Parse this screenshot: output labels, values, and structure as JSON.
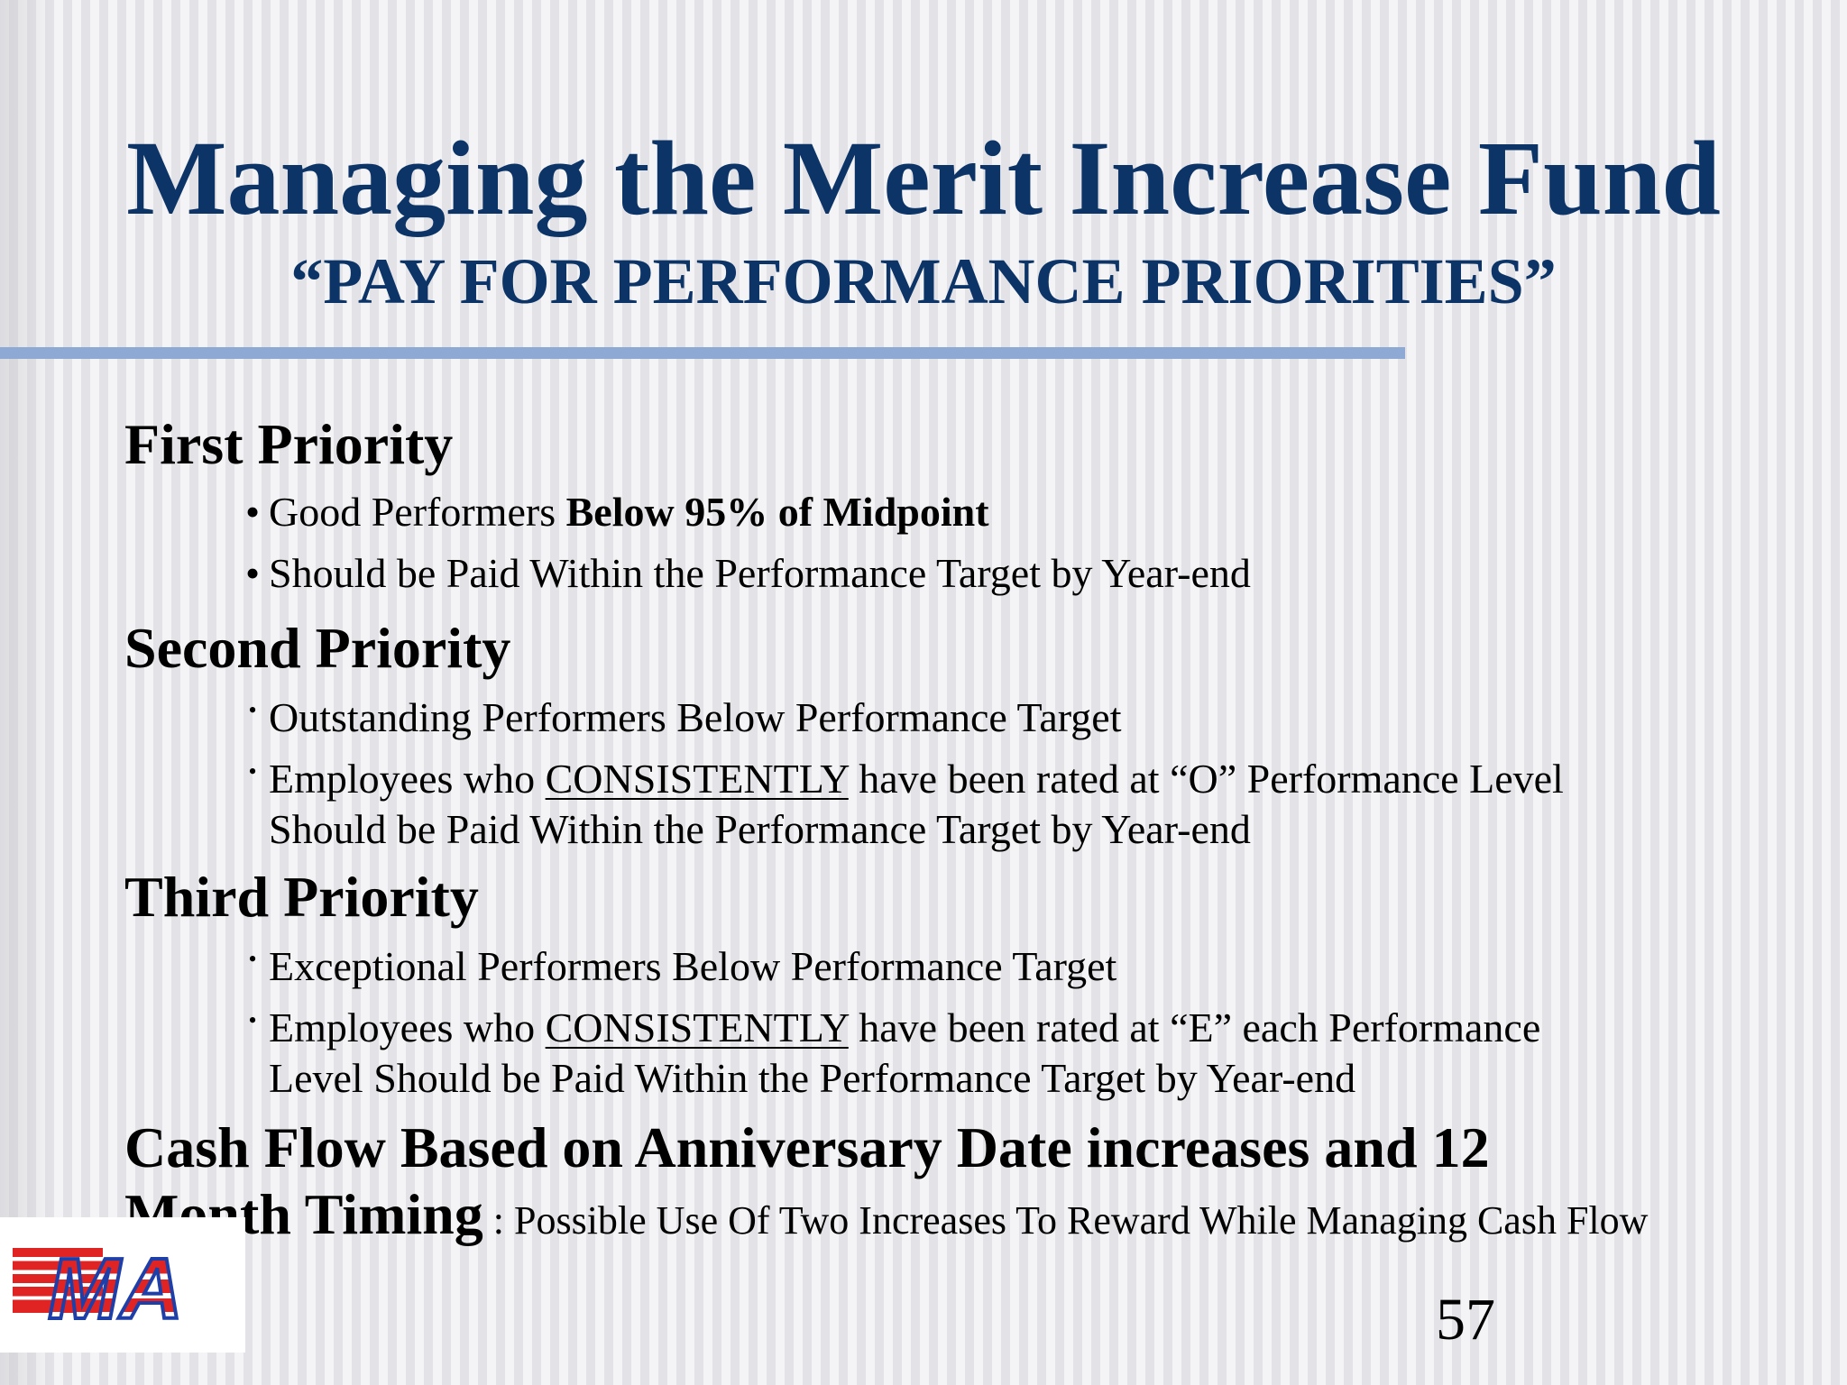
{
  "slide": {
    "title": "Managing the Merit Increase Fund",
    "subtitle": "“PAY FOR PERFORMANCE PRIORITIES”",
    "page_number": "57",
    "colors": {
      "title": "#0d3467",
      "rule": "#8eaad4",
      "logo_red": "#e02424",
      "logo_blue": "#1f3fa8"
    }
  },
  "sections": {
    "first": {
      "heading": "First Priority",
      "items": [
        {
          "pre": "Good Performers ",
          "bold": "Below  95% of Midpoint"
        },
        {
          "text": "Should be Paid Within the Performance Target by Year-end"
        }
      ]
    },
    "second": {
      "heading": "Second Priority",
      "items": [
        {
          "text": "Outstanding  Performers Below Performance Target"
        },
        {
          "pre": "Employees who ",
          "underline": "CONSISTENTLY",
          "post": " have been rated at “O” Performance Level",
          "line2": "Should be Paid Within the Performance Target by Year-end"
        }
      ]
    },
    "third": {
      "heading": "Third Priority",
      "items": [
        {
          "text": "Exceptional Performers Below Performance Target"
        },
        {
          "pre": "Employees who ",
          "underline": "CONSISTENTLY",
          "post": " have been rated at “E” each Performance",
          "line2": "Level Should be Paid Within the Performance Target by Year-end"
        }
      ]
    },
    "cash": {
      "line1": "Cash Flow Based on Anniversary Date increases and 12",
      "line2_bold": "Month Timing",
      "line2_rest": " : Possible Use Of Two Increases To Reward While Managing Cash Flow"
    }
  },
  "logo": {
    "text": "MA"
  }
}
